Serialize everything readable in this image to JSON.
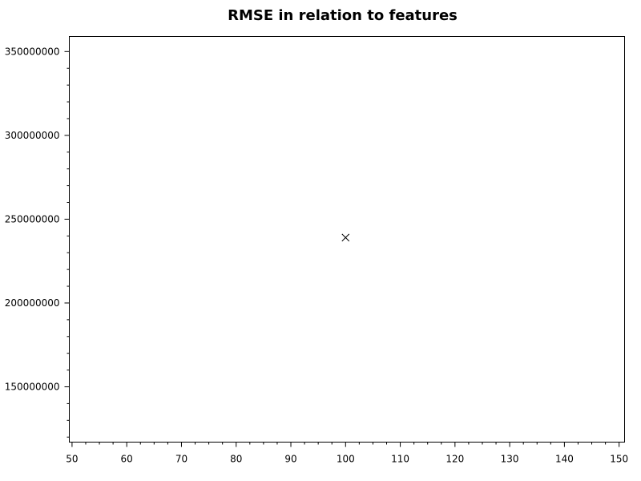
{
  "chart_data": {
    "type": "scatter",
    "title": "RMSE in relation to features",
    "xlabel": "",
    "ylabel": "",
    "xlim": [
      49.5,
      151
    ],
    "ylim": [
      117000000,
      359000000
    ],
    "x_ticks": [
      50,
      60,
      70,
      80,
      90,
      100,
      110,
      120,
      130,
      140,
      150
    ],
    "x_minor_step": 2.5,
    "y_ticks": [
      150000000,
      200000000,
      250000000,
      300000000,
      350000000
    ],
    "y_minor_step": 10000000,
    "grid": false,
    "marker": "x",
    "series": [
      {
        "x": [
          100
        ],
        "y": [
          239000000
        ]
      }
    ]
  }
}
